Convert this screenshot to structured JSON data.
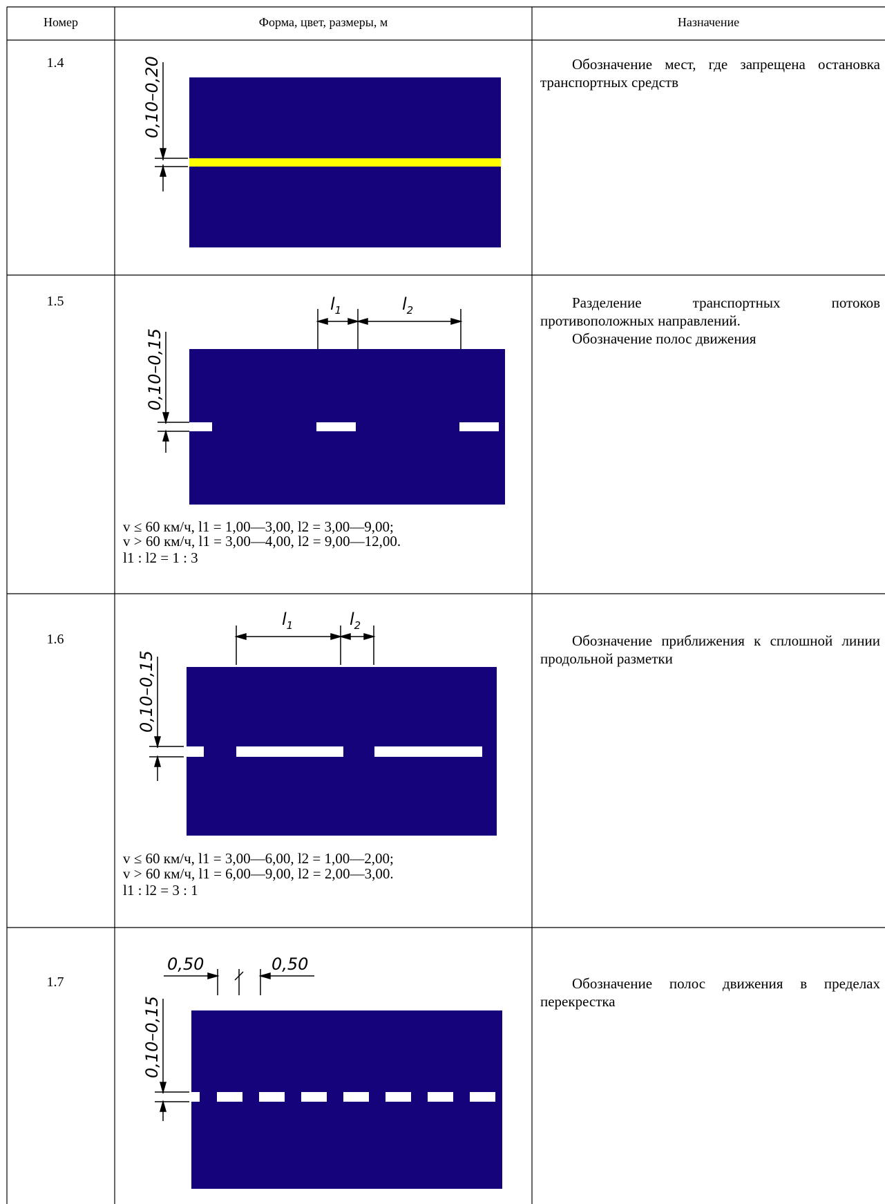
{
  "header": {
    "col_number": "Номер",
    "col_form": "Форма, цвет, размеры, м",
    "col_purpose": "Назначение"
  },
  "colors": {
    "road": "#14037a",
    "yellow_line": "#ffff00",
    "white_line": "#ffffff"
  },
  "rows": [
    {
      "number": "1.4",
      "width_label": "0,10–0,20",
      "purpose": [
        "Обозначение мест, где запрещена остановка транспортных средств"
      ],
      "line_color": "yellow"
    },
    {
      "number": "1.5",
      "width_label": "0,10–0,15",
      "dim_l1": "l1",
      "dim_l2": "l2",
      "purpose": [
        "Разделение транспортных потоков противоположных направлений.",
        "Обозначение полос движения"
      ],
      "notes": [
        "v ≤ 60 км/ч, l1 = 1,00—3,00, l2 = 3,00—9,00;",
        "v > 60 км/ч, l1 = 3,00—4,00, l2 = 9,00—12,00.",
        "l1 : l2 = 1 : 3"
      ]
    },
    {
      "number": "1.6",
      "width_label": "0,10–0,15",
      "dim_l1": "l1",
      "dim_l2": "l2",
      "purpose": [
        "Обозначение приближения к сплошной линии продольной разметки"
      ],
      "notes": [
        "v ≤ 60 км/ч, l1 = 3,00—6,00, l2 = 1,00—2,00;",
        "v > 60 км/ч, l1 = 6,00—9,00, l2 = 2,00—3,00.",
        "l1 : l2 = 3 : 1"
      ]
    },
    {
      "number": "1.7",
      "width_label": "0,10–0,15",
      "dim_left": "0,50",
      "dim_right": "0,50",
      "purpose": [
        "Обозначение полос движения в пределах перекрестка"
      ]
    }
  ]
}
